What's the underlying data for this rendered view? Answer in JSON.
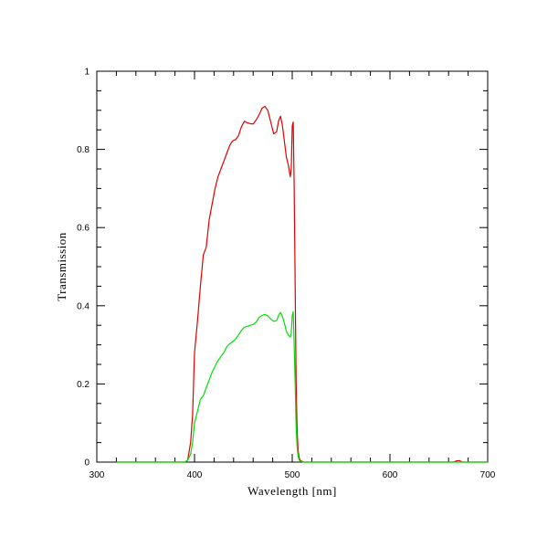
{
  "chart_data": {
    "type": "line",
    "title": "",
    "xlabel": "Wavelength [nm]",
    "ylabel": "Transmission",
    "xlim": [
      300,
      700
    ],
    "ylim": [
      0,
      1
    ],
    "x_ticks": [
      300,
      400,
      500,
      600,
      700
    ],
    "y_ticks": [
      0,
      0.2,
      0.4,
      0.6,
      0.8,
      1
    ],
    "x_tick_labels": [
      "300",
      "400",
      "500",
      "600",
      "700"
    ],
    "y_tick_labels": [
      "0",
      "0.2",
      "0.4",
      "0.6",
      "0.8",
      "1"
    ],
    "grid": false,
    "legend": "none",
    "series": [
      {
        "color": "#e00000",
        "x": [
          320,
          390,
          393,
          396,
          398,
          400,
          403,
          406,
          409,
          412,
          415,
          418,
          421,
          424,
          427,
          430,
          433,
          436,
          439,
          442,
          445,
          448,
          451,
          454,
          457,
          460,
          463,
          466,
          469,
          472,
          475,
          478,
          481,
          484,
          486,
          488,
          490,
          492,
          494,
          496,
          498,
          499,
          500,
          501,
          502,
          503,
          504,
          505,
          506,
          507,
          508,
          510,
          512,
          515,
          520,
          600,
          665,
          668,
          671,
          674,
          700
        ],
        "y": [
          0,
          0,
          0.005,
          0.05,
          0.12,
          0.28,
          0.36,
          0.45,
          0.53,
          0.55,
          0.62,
          0.66,
          0.7,
          0.73,
          0.75,
          0.77,
          0.79,
          0.81,
          0.822,
          0.825,
          0.835,
          0.858,
          0.872,
          0.868,
          0.866,
          0.865,
          0.875,
          0.888,
          0.905,
          0.91,
          0.9,
          0.87,
          0.84,
          0.845,
          0.873,
          0.885,
          0.86,
          0.82,
          0.78,
          0.76,
          0.73,
          0.75,
          0.86,
          0.87,
          0.7,
          0.45,
          0.2,
          0.08,
          0.03,
          0.012,
          0.005,
          0.002,
          0,
          0,
          0,
          0,
          0,
          0.003,
          0.004,
          0,
          0
        ]
      },
      {
        "color": "#00e000",
        "x": [
          320,
          390,
          393,
          396,
          398,
          400,
          403,
          406,
          409,
          412,
          415,
          418,
          421,
          424,
          427,
          430,
          433,
          436,
          439,
          442,
          445,
          448,
          451,
          454,
          457,
          460,
          463,
          466,
          469,
          472,
          475,
          478,
          481,
          484,
          486,
          488,
          490,
          492,
          494,
          496,
          498,
          499,
          500,
          501,
          502,
          503,
          504,
          505,
          506,
          507,
          508,
          510,
          512,
          515,
          520,
          600,
          700
        ],
        "y": [
          0,
          0,
          0.005,
          0.02,
          0.05,
          0.1,
          0.13,
          0.16,
          0.17,
          0.19,
          0.21,
          0.23,
          0.245,
          0.26,
          0.27,
          0.28,
          0.295,
          0.303,
          0.308,
          0.315,
          0.325,
          0.337,
          0.345,
          0.347,
          0.35,
          0.352,
          0.358,
          0.37,
          0.375,
          0.378,
          0.374,
          0.366,
          0.36,
          0.362,
          0.375,
          0.383,
          0.372,
          0.355,
          0.335,
          0.325,
          0.32,
          0.33,
          0.375,
          0.385,
          0.3,
          0.2,
          0.09,
          0.04,
          0.015,
          0.006,
          0.003,
          0.001,
          0,
          0,
          0,
          0,
          0
        ]
      }
    ]
  }
}
